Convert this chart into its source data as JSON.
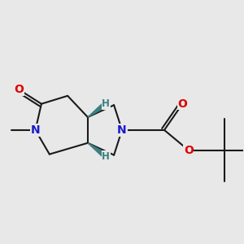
{
  "bg_color": "#e8e8e8",
  "bond_color": "#1a1a1a",
  "bond_lw": 1.5,
  "atom_colors": {
    "O": "#dd0000",
    "N": "#1a1acc",
    "H": "#3a8080",
    "C": "#1a1a1a"
  },
  "figsize": [
    3.0,
    3.0
  ],
  "dpi": 100,
  "xlim": [
    -1.8,
    4.2
  ],
  "ylim": [
    -1.8,
    2.2
  ]
}
